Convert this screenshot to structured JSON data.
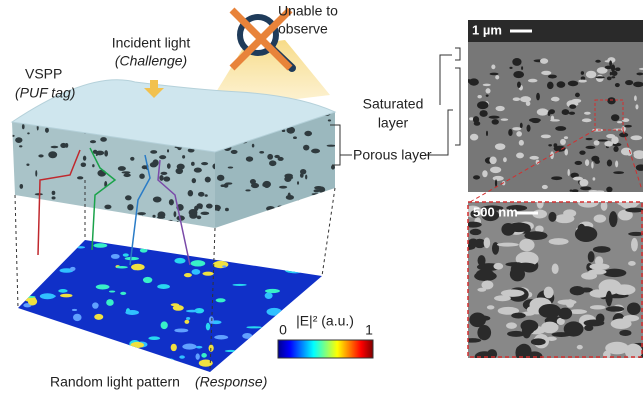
{
  "labels": {
    "incident_light": "Incident light",
    "challenge": "(Challenge)",
    "unable_to": "Unable to",
    "observe": "observe",
    "vspp": "VSPP",
    "puf_tag": "(PUF tag)",
    "saturated": "Saturated",
    "layer": "layer",
    "porous_layer": "Porous layer",
    "intensity": "|E|² (a.u.)",
    "scale_min": "0",
    "scale_max": "1",
    "pattern": "Random light pattern",
    "response": "(Response)",
    "scale_bar_top": "1 µm",
    "scale_bar_bottom": "500 nm"
  }
}
